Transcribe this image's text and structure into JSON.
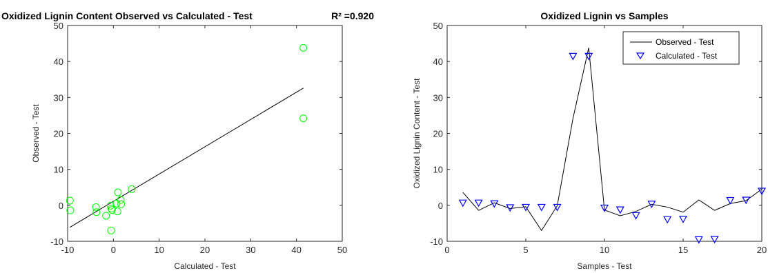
{
  "chart_data": [
    {
      "type": "scatter",
      "title": "Oxidized Lignin Content Observed vs Calculated - Test",
      "r2_label": "R² =0.920",
      "xlabel": "Calculated - Test",
      "ylabel": "Observed - Test",
      "xlim": [
        -10,
        50
      ],
      "ylim": [
        -10,
        50
      ],
      "xticks": [
        "-10",
        "0",
        "10",
        "20",
        "30",
        "40",
        "50"
      ],
      "yticks": [
        "-10",
        "0",
        "10",
        "20",
        "30",
        "40",
        "50"
      ],
      "marker_color": "#00ff00",
      "line_color": "#000000",
      "grid": false,
      "points": [
        {
          "x": -9.5,
          "y": 1.3
        },
        {
          "x": -9.4,
          "y": -1.4
        },
        {
          "x": -3.8,
          "y": -0.5
        },
        {
          "x": -3.7,
          "y": -1.9
        },
        {
          "x": -1.6,
          "y": -2.9
        },
        {
          "x": -0.6,
          "y": -0.1
        },
        {
          "x": -0.4,
          "y": -0.9
        },
        {
          "x": -0.3,
          "y": -1.3
        },
        {
          "x": -0.5,
          "y": -7.0
        },
        {
          "x": 0.7,
          "y": 0.5
        },
        {
          "x": 1.0,
          "y": 3.6
        },
        {
          "x": 0.9,
          "y": -1.7
        },
        {
          "x": 1.6,
          "y": 1.5
        },
        {
          "x": 1.7,
          "y": 0.3
        },
        {
          "x": 4.0,
          "y": 4.5
        },
        {
          "x": 41.5,
          "y": 43.8
        },
        {
          "x": 41.5,
          "y": 24.2
        }
      ],
      "fit_line": [
        {
          "x": -9.5,
          "y": -6.1
        },
        {
          "x": 41.5,
          "y": 32.6
        }
      ]
    },
    {
      "type": "line",
      "title": "Oxidized Lignin vs Samples",
      "xlabel": "Samples - Test",
      "ylabel": "Oxidized Lignin Content - Test",
      "xlim": [
        0,
        20
      ],
      "ylim": [
        -10,
        50
      ],
      "xticks": [
        "0",
        "5",
        "10",
        "15",
        "20"
      ],
      "yticks": [
        "-10",
        "0",
        "10",
        "20",
        "30",
        "40",
        "50"
      ],
      "grid": false,
      "legend_position": "top-right",
      "x": [
        1,
        2,
        3,
        4,
        5,
        6,
        7,
        8,
        9,
        10,
        11,
        12,
        13,
        14,
        15,
        16,
        17,
        18,
        19,
        20
      ],
      "series": [
        {
          "name": "Observed - Test",
          "style": "line",
          "color": "#000000",
          "values": [
            3.6,
            -1.4,
            0.7,
            -0.9,
            -0.4,
            -7.0,
            -0.1,
            24.2,
            43.8,
            -1.3,
            -2.9,
            -1.7,
            0.3,
            -0.5,
            -1.9,
            1.5,
            -1.4,
            0.5,
            1.3,
            4.5
          ]
        },
        {
          "name": "Calculated - Test",
          "style": "triangle-down",
          "color": "#0000ff",
          "values": [
            0.7,
            0.7,
            0.5,
            -0.6,
            -0.5,
            -0.5,
            -0.5,
            41.5,
            41.5,
            -0.7,
            -1.2,
            -2.8,
            0.4,
            -3.9,
            -3.8,
            -9.5,
            -9.4,
            1.4,
            1.5,
            4.0
          ]
        }
      ]
    }
  ]
}
